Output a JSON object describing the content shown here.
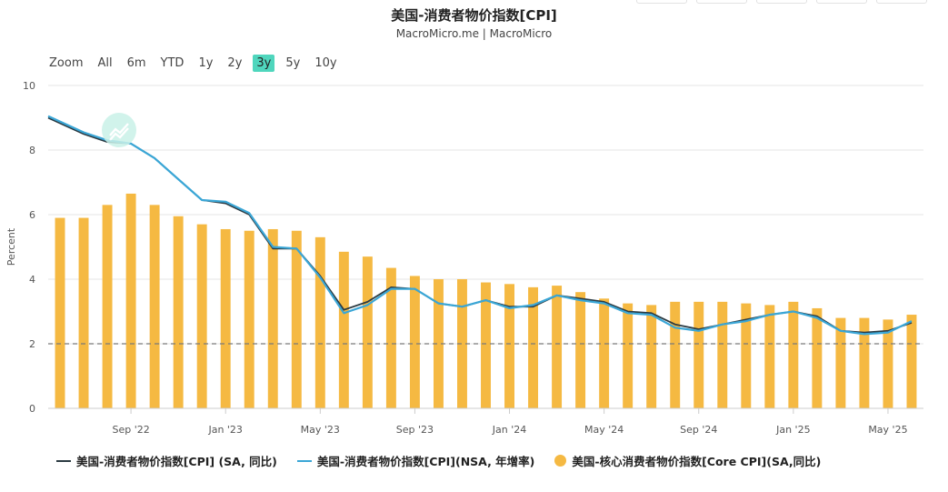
{
  "header": {
    "title": "美国-消费者物价指数[CPI]",
    "subtitle": "MacroMicro.me | MacroMicro"
  },
  "range_selector": {
    "zoom_label": "Zoom",
    "buttons": [
      "All",
      "6m",
      "YTD",
      "1y",
      "2y",
      "3y",
      "5y",
      "10y"
    ],
    "active": "3y"
  },
  "colors": {
    "cpi_sa": "#2b3a42",
    "cpi_nsa": "#3aa6d6",
    "core_cpi": "#f5b942",
    "reference_line": "#7a7a7a",
    "active_range": "#4fd6bd"
  },
  "chart_data": {
    "type": "bar",
    "ylabel": "Percent",
    "ylim": [
      0,
      10
    ],
    "yticks": [
      0,
      2,
      4,
      6,
      8,
      10
    ],
    "reference_line": 2,
    "x_tick_labels": [
      "Sep '22",
      "Jan '23",
      "May '23",
      "Sep '23",
      "Jan '24",
      "May '24",
      "Sep '24",
      "Jan '25",
      "May '25"
    ],
    "x_tick_index": [
      3,
      7,
      11,
      15,
      19,
      23,
      27,
      31,
      35
    ],
    "categories": [
      "2022-06",
      "2022-07",
      "2022-08",
      "2022-09",
      "2022-10",
      "2022-11",
      "2022-12",
      "2023-01",
      "2023-02",
      "2023-03",
      "2023-04",
      "2023-05",
      "2023-06",
      "2023-07",
      "2023-08",
      "2023-09",
      "2023-10",
      "2023-11",
      "2023-12",
      "2024-01",
      "2024-02",
      "2024-03",
      "2024-04",
      "2024-05",
      "2024-06",
      "2024-07",
      "2024-08",
      "2024-09",
      "2024-10",
      "2024-11",
      "2024-12",
      "2025-01",
      "2025-02",
      "2025-03",
      "2025-04",
      "2025-05",
      "2025-06"
    ],
    "series": [
      {
        "name": "美国-消费者物价指数[CPI] (SA, 同比)",
        "kind": "line",
        "values": [
          9.0,
          8.5,
          8.25,
          8.2,
          7.75,
          7.1,
          6.45,
          6.35,
          6.0,
          4.95,
          4.95,
          4.1,
          3.05,
          3.3,
          3.75,
          3.7,
          3.25,
          3.15,
          3.35,
          3.15,
          3.15,
          3.5,
          3.4,
          3.3,
          3.0,
          2.95,
          2.6,
          2.45,
          2.6,
          2.75,
          2.9,
          3.0,
          2.85,
          2.4,
          2.35,
          2.4,
          2.65
        ]
      },
      {
        "name": "美国-消费者物价指数[CPI](NSA, 年增率)",
        "kind": "line",
        "values": [
          9.05,
          8.55,
          8.3,
          8.2,
          7.75,
          7.1,
          6.45,
          6.4,
          6.05,
          5.0,
          4.95,
          4.05,
          2.95,
          3.2,
          3.7,
          3.7,
          3.25,
          3.15,
          3.35,
          3.1,
          3.2,
          3.5,
          3.35,
          3.25,
          2.95,
          2.9,
          2.5,
          2.4,
          2.6,
          2.7,
          2.9,
          3.0,
          2.8,
          2.4,
          2.3,
          2.35,
          2.7
        ]
      },
      {
        "name": "美国-核心消费者物价指数[Core CPI](SA,同比)",
        "kind": "bar",
        "values": [
          5.9,
          5.9,
          6.3,
          6.65,
          6.3,
          5.95,
          5.7,
          5.55,
          5.5,
          5.55,
          5.5,
          5.3,
          4.85,
          4.7,
          4.35,
          4.1,
          4.0,
          4.0,
          3.9,
          3.85,
          3.75,
          3.8,
          3.6,
          3.4,
          3.25,
          3.2,
          3.3,
          3.3,
          3.3,
          3.25,
          3.2,
          3.3,
          3.1,
          2.8,
          2.8,
          2.75,
          2.9
        ]
      }
    ]
  }
}
